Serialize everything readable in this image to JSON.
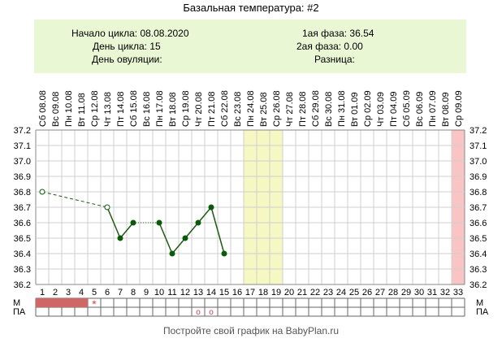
{
  "header": {
    "title": "Базальная температура: #2",
    "cycle_start": "Начало цикла: 08.08.2020",
    "cycle_day": "День цикла: 15",
    "ovulation_day": "День овуляции:",
    "phase1": "1ая фаза: 36.54",
    "phase2": "2ая фаза: 0.00",
    "difference": "Разница:"
  },
  "footer": "Постройте свой график на BabyPlan.ru",
  "row_labels": {
    "m": "М",
    "pa": "ПА"
  },
  "colors": {
    "info_bg": "#e9f7d4",
    "line": "#1f5a12",
    "point": "#0a5a0a",
    "yellow_band": "#f6f8c4",
    "pink_band": "#f9c4c4",
    "period_fill": "#cf6767",
    "star": "#e04040",
    "circle_mark": "#d04040"
  },
  "chart_data": {
    "type": "line",
    "title": "Базальная температура: #2",
    "xlabel": "",
    "ylabel": "",
    "ylim": [
      36.2,
      37.2
    ],
    "yticks": [
      "36.2",
      "36.3",
      "36.4",
      "36.5",
      "36.6",
      "36.7",
      "36.8",
      "36.9",
      "37.0",
      "37.1",
      "37.2"
    ],
    "days": [
      "1",
      "2",
      "3",
      "4",
      "5",
      "6",
      "7",
      "8",
      "9",
      "10",
      "11",
      "12",
      "13",
      "14",
      "15",
      "16",
      "17",
      "18",
      "19",
      "20",
      "21",
      "22",
      "23",
      "24",
      "25",
      "26",
      "27",
      "28",
      "29",
      "30",
      "31",
      "32",
      "33"
    ],
    "dates": [
      "Сб 08.08",
      "Вс 09.08",
      "Пн 10.08",
      "Вт 11.08",
      "Ср 12.08",
      "Чт 13.08",
      "Пт 14.08",
      "Сб 15.08",
      "Вс 16.08",
      "Пн 17.08",
      "Вт 18.08",
      "Ср 19.08",
      "Чт 20.08",
      "Пт 21.08",
      "Сб 22.08",
      "Вс 23.08",
      "Пн 24.08",
      "Вт 25.08",
      "Ср 26.08",
      "Чт 27.08",
      "Пт 28.08",
      "Сб 29.08",
      "Вс 30.08",
      "Пн 31.08",
      "Вт 01.09",
      "Ср 02.09",
      "Чт 03.09",
      "Пт 04.09",
      "Сб 05.09",
      "Вс 06.09",
      "Пн 07.09",
      "Вт 08.09",
      "Ср 09.09"
    ],
    "series": [
      {
        "points": [
          {
            "day": 1,
            "temp": 36.8,
            "open": true
          },
          {
            "day": 6,
            "temp": 36.7,
            "open": true
          },
          {
            "day": 7,
            "temp": 36.5,
            "open": false
          },
          {
            "day": 8,
            "temp": 36.6,
            "open": false
          },
          {
            "day": 10,
            "temp": 36.6,
            "open": false
          },
          {
            "day": 11,
            "temp": 36.4,
            "open": false
          },
          {
            "day": 12,
            "temp": 36.5,
            "open": false
          },
          {
            "day": 13,
            "temp": 36.6,
            "open": false
          },
          {
            "day": 14,
            "temp": 36.7,
            "open": false
          },
          {
            "day": 15,
            "temp": 36.4,
            "open": false
          }
        ],
        "segments": [
          {
            "from": 1,
            "to": 6,
            "style": "dashed"
          },
          {
            "from": 6,
            "to": 7,
            "style": "solid"
          },
          {
            "from": 7,
            "to": 8,
            "style": "solid"
          },
          {
            "from": 8,
            "to": 10,
            "style": "dotted"
          },
          {
            "from": 10,
            "to": 11,
            "style": "solid"
          },
          {
            "from": 11,
            "to": 12,
            "style": "solid"
          },
          {
            "from": 12,
            "to": 13,
            "style": "solid"
          },
          {
            "from": 13,
            "to": 14,
            "style": "solid"
          },
          {
            "from": 14,
            "to": 15,
            "style": "solid"
          }
        ]
      }
    ],
    "highlight_days": {
      "yellow": [
        17,
        18,
        19
      ],
      "pink": [
        33
      ]
    },
    "m_row": {
      "filled_days": [
        1,
        2,
        3,
        4
      ],
      "star_day": 5,
      "star_symbol": "*"
    },
    "pa_row": {
      "circle_days": [
        13,
        14
      ],
      "circle_symbol": "o"
    },
    "grid": true
  }
}
